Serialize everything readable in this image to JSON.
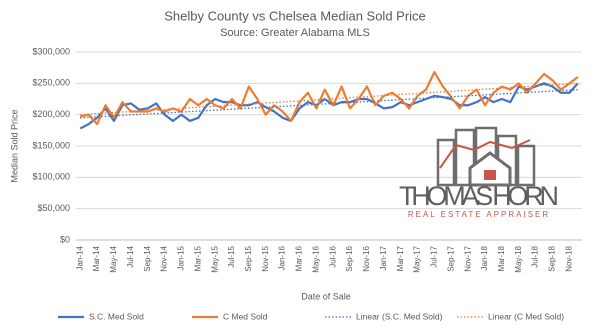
{
  "chart_data": {
    "type": "line",
    "title": "Shelby County vs Chelsea Median Sold Price",
    "subtitle": "Source: Greater Alabama MLS",
    "x_label": "Date of Sale",
    "y_label": "Median Sold Price",
    "categories": [
      "Jan-14",
      null,
      "Mar-14",
      null,
      "May-14",
      null,
      "Jul-14",
      null,
      "Sep-14",
      null,
      "Nov-14",
      null,
      "Jan-15",
      null,
      "Mar-15",
      null,
      "May-15",
      null,
      "Jul-15",
      null,
      "Sep-15",
      null,
      "Nov-15",
      null,
      "Jan-16",
      null,
      "Mar-16",
      null,
      "May-16",
      null,
      "Jul-16",
      null,
      "Sep-16",
      null,
      "Nov-16",
      null,
      "Jan-17",
      null,
      "Mar-17",
      null,
      "May-17",
      null,
      "Jul-17",
      null,
      "Sep-17",
      null,
      "Nov-17",
      null,
      "Jan-18",
      null,
      "Mar-18",
      null,
      "May-18",
      null,
      "Jul-18",
      null,
      "Sep-18",
      null,
      "Nov-18",
      null
    ],
    "series": [
      {
        "name": "S.C. Med Sold",
        "color": "#4472c4",
        "values": [
          178000,
          185000,
          195000,
          210000,
          190000,
          215000,
          218000,
          208000,
          210000,
          218000,
          200000,
          190000,
          200000,
          190000,
          195000,
          215000,
          225000,
          220000,
          220000,
          215000,
          215000,
          220000,
          212000,
          205000,
          195000,
          190000,
          210000,
          220000,
          215000,
          225000,
          215000,
          220000,
          220000,
          225000,
          225000,
          218000,
          210000,
          212000,
          220000,
          215000,
          220000,
          225000,
          230000,
          228000,
          225000,
          215000,
          215000,
          220000,
          228000,
          220000,
          225000,
          220000,
          245000,
          240000,
          245000,
          250000,
          245000,
          235000,
          235000,
          250000
        ]
      },
      {
        "name": "C Med Sold",
        "color": "#ed7d31",
        "values": [
          197000,
          200000,
          185000,
          215000,
          195000,
          220000,
          205000,
          205000,
          205000,
          210000,
          205000,
          210000,
          205000,
          225000,
          215000,
          225000,
          215000,
          210000,
          225000,
          210000,
          245000,
          225000,
          200000,
          215000,
          205000,
          190000,
          220000,
          235000,
          210000,
          240000,
          215000,
          245000,
          210000,
          225000,
          245000,
          215000,
          230000,
          235000,
          225000,
          210000,
          230000,
          240000,
          268000,
          245000,
          228000,
          210000,
          230000,
          240000,
          215000,
          235000,
          245000,
          240000,
          250000,
          235000,
          250000,
          265000,
          255000,
          240000,
          250000,
          260000
        ]
      }
    ],
    "trendlines": [
      {
        "name": "Linear (S.C. Med Sold)",
        "color": "#4472c4",
        "start": 195000,
        "end": 240000
      },
      {
        "name": "Linear (C Med Sold)",
        "color": "#ed7d31",
        "start": 200000,
        "end": 250000
      }
    ],
    "ylim": [
      0,
      300000
    ],
    "yticks": [
      {
        "value": 0,
        "label": "$0"
      },
      {
        "value": 50000,
        "label": "$50,000"
      },
      {
        "value": 100000,
        "label": "$100,000"
      },
      {
        "value": 150000,
        "label": "$150,000"
      },
      {
        "value": 200000,
        "label": "$200,000"
      },
      {
        "value": 250000,
        "label": "$250,000"
      },
      {
        "value": 300000,
        "label": "$300,000"
      }
    ],
    "grid": true
  },
  "logo": {
    "name": "THOMAS HORN",
    "tagline": "REAL ESTATE APPRAISER"
  }
}
